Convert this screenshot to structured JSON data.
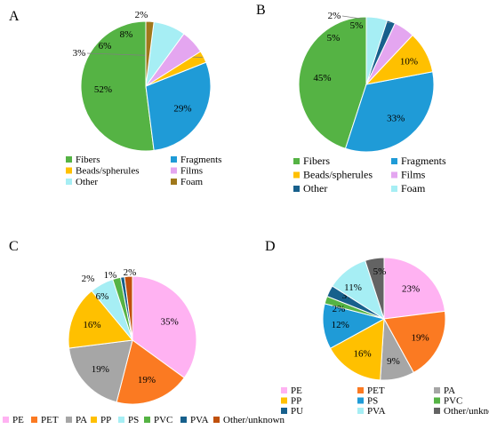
{
  "chart_data": [
    {
      "panel": "A",
      "type": "pie",
      "slices": [
        {
          "label": "Fibers",
          "value": 52,
          "text": "52%",
          "color": "#55b344"
        },
        {
          "label": "Fragments",
          "value": 29,
          "text": "29%",
          "color": "#1f9bd7"
        },
        {
          "label": "Beads/spherules",
          "value": 3,
          "text": "3%",
          "color": "#ffc000"
        },
        {
          "label": "Films",
          "value": 6,
          "text": "6%",
          "color": "#e4a6f0"
        },
        {
          "label": "Other",
          "value": 8,
          "text": "8%",
          "color": "#a6eef4"
        },
        {
          "label": "Foam",
          "value": 2,
          "text": "2%",
          "color": "#a0781b"
        }
      ],
      "legend_order": [
        "Fibers",
        "Fragments",
        "Beads/spherules",
        "Films",
        "Other",
        "Foam"
      ],
      "legend_columns": 2,
      "legend_placement": "bottom"
    },
    {
      "panel": "B",
      "type": "pie",
      "slices": [
        {
          "label": "Fibers",
          "value": 45,
          "text": "45%",
          "color": "#55b344"
        },
        {
          "label": "Fragments",
          "value": 33,
          "text": "33%",
          "color": "#1f9bd7"
        },
        {
          "label": "Beads/spherules",
          "value": 10,
          "text": "10%",
          "color": "#ffc000"
        },
        {
          "label": "Films",
          "value": 5,
          "text": "5%",
          "color": "#e4a6f0"
        },
        {
          "label": "Other",
          "value": 2,
          "text": "2%",
          "color": "#17608c"
        },
        {
          "label": "Foam",
          "value": 5,
          "text": "5%",
          "color": "#a6eef4"
        }
      ],
      "legend_order": [
        "Fibers",
        "Fragments",
        "Beads/spherules",
        "Films",
        "Other",
        "Foam"
      ],
      "legend_columns": 2,
      "legend_placement": "bottom"
    },
    {
      "panel": "C",
      "type": "pie",
      "slices": [
        {
          "label": "PE",
          "value": 35,
          "text": "35%",
          "color": "#ffb2f2"
        },
        {
          "label": "PET",
          "value": 19,
          "text": "19%",
          "color": "#fb7a22"
        },
        {
          "label": "PA",
          "value": 19,
          "text": "19%",
          "color": "#a6a6a6"
        },
        {
          "label": "PP",
          "value": 16,
          "text": "16%",
          "color": "#ffc000"
        },
        {
          "label": "PS",
          "value": 6,
          "text": "6%",
          "color": "#a6eef4"
        },
        {
          "label": "PVC",
          "value": 2,
          "text": "2%",
          "color": "#55b344"
        },
        {
          "label": "PVA",
          "value": 1,
          "text": "1%",
          "color": "#17608c"
        },
        {
          "label": "Other/unknown",
          "value": 2,
          "text": "2%",
          "color": "#c0500c"
        }
      ],
      "legend_order": [
        "PE",
        "PET",
        "PA",
        "PP",
        "PS",
        "PVC",
        "PVA",
        "Other/unknown"
      ],
      "legend_columns": 8,
      "legend_placement": "bottom"
    },
    {
      "panel": "D",
      "type": "pie",
      "slices": [
        {
          "label": "PE",
          "value": 23,
          "text": "23%",
          "color": "#ffb2f2"
        },
        {
          "label": "PET",
          "value": 19,
          "text": "19%",
          "color": "#fb7a22"
        },
        {
          "label": "PA",
          "value": 9,
          "text": "9%",
          "color": "#a6a6a6"
        },
        {
          "label": "PP",
          "value": 16,
          "text": "16%",
          "color": "#ffc000"
        },
        {
          "label": "PS",
          "value": 12,
          "text": "12%",
          "color": "#1f9bd7"
        },
        {
          "label": "PVC",
          "value": 2,
          "text": "2%",
          "color": "#55b344"
        },
        {
          "label": "PU",
          "value": 3,
          "text": "3%",
          "color": "#17608c"
        },
        {
          "label": "PVA",
          "value": 11,
          "text": "11%",
          "color": "#a6eef4"
        },
        {
          "label": "Other/unknown",
          "value": 5,
          "text": "5%",
          "color": "#636363"
        }
      ],
      "legend_order": [
        "PE",
        "PET",
        "PA",
        "PP",
        "PS",
        "PVC",
        "PU",
        "PVA",
        "Other/unknown"
      ],
      "legend_columns": 3,
      "legend_placement": "bottom"
    }
  ]
}
